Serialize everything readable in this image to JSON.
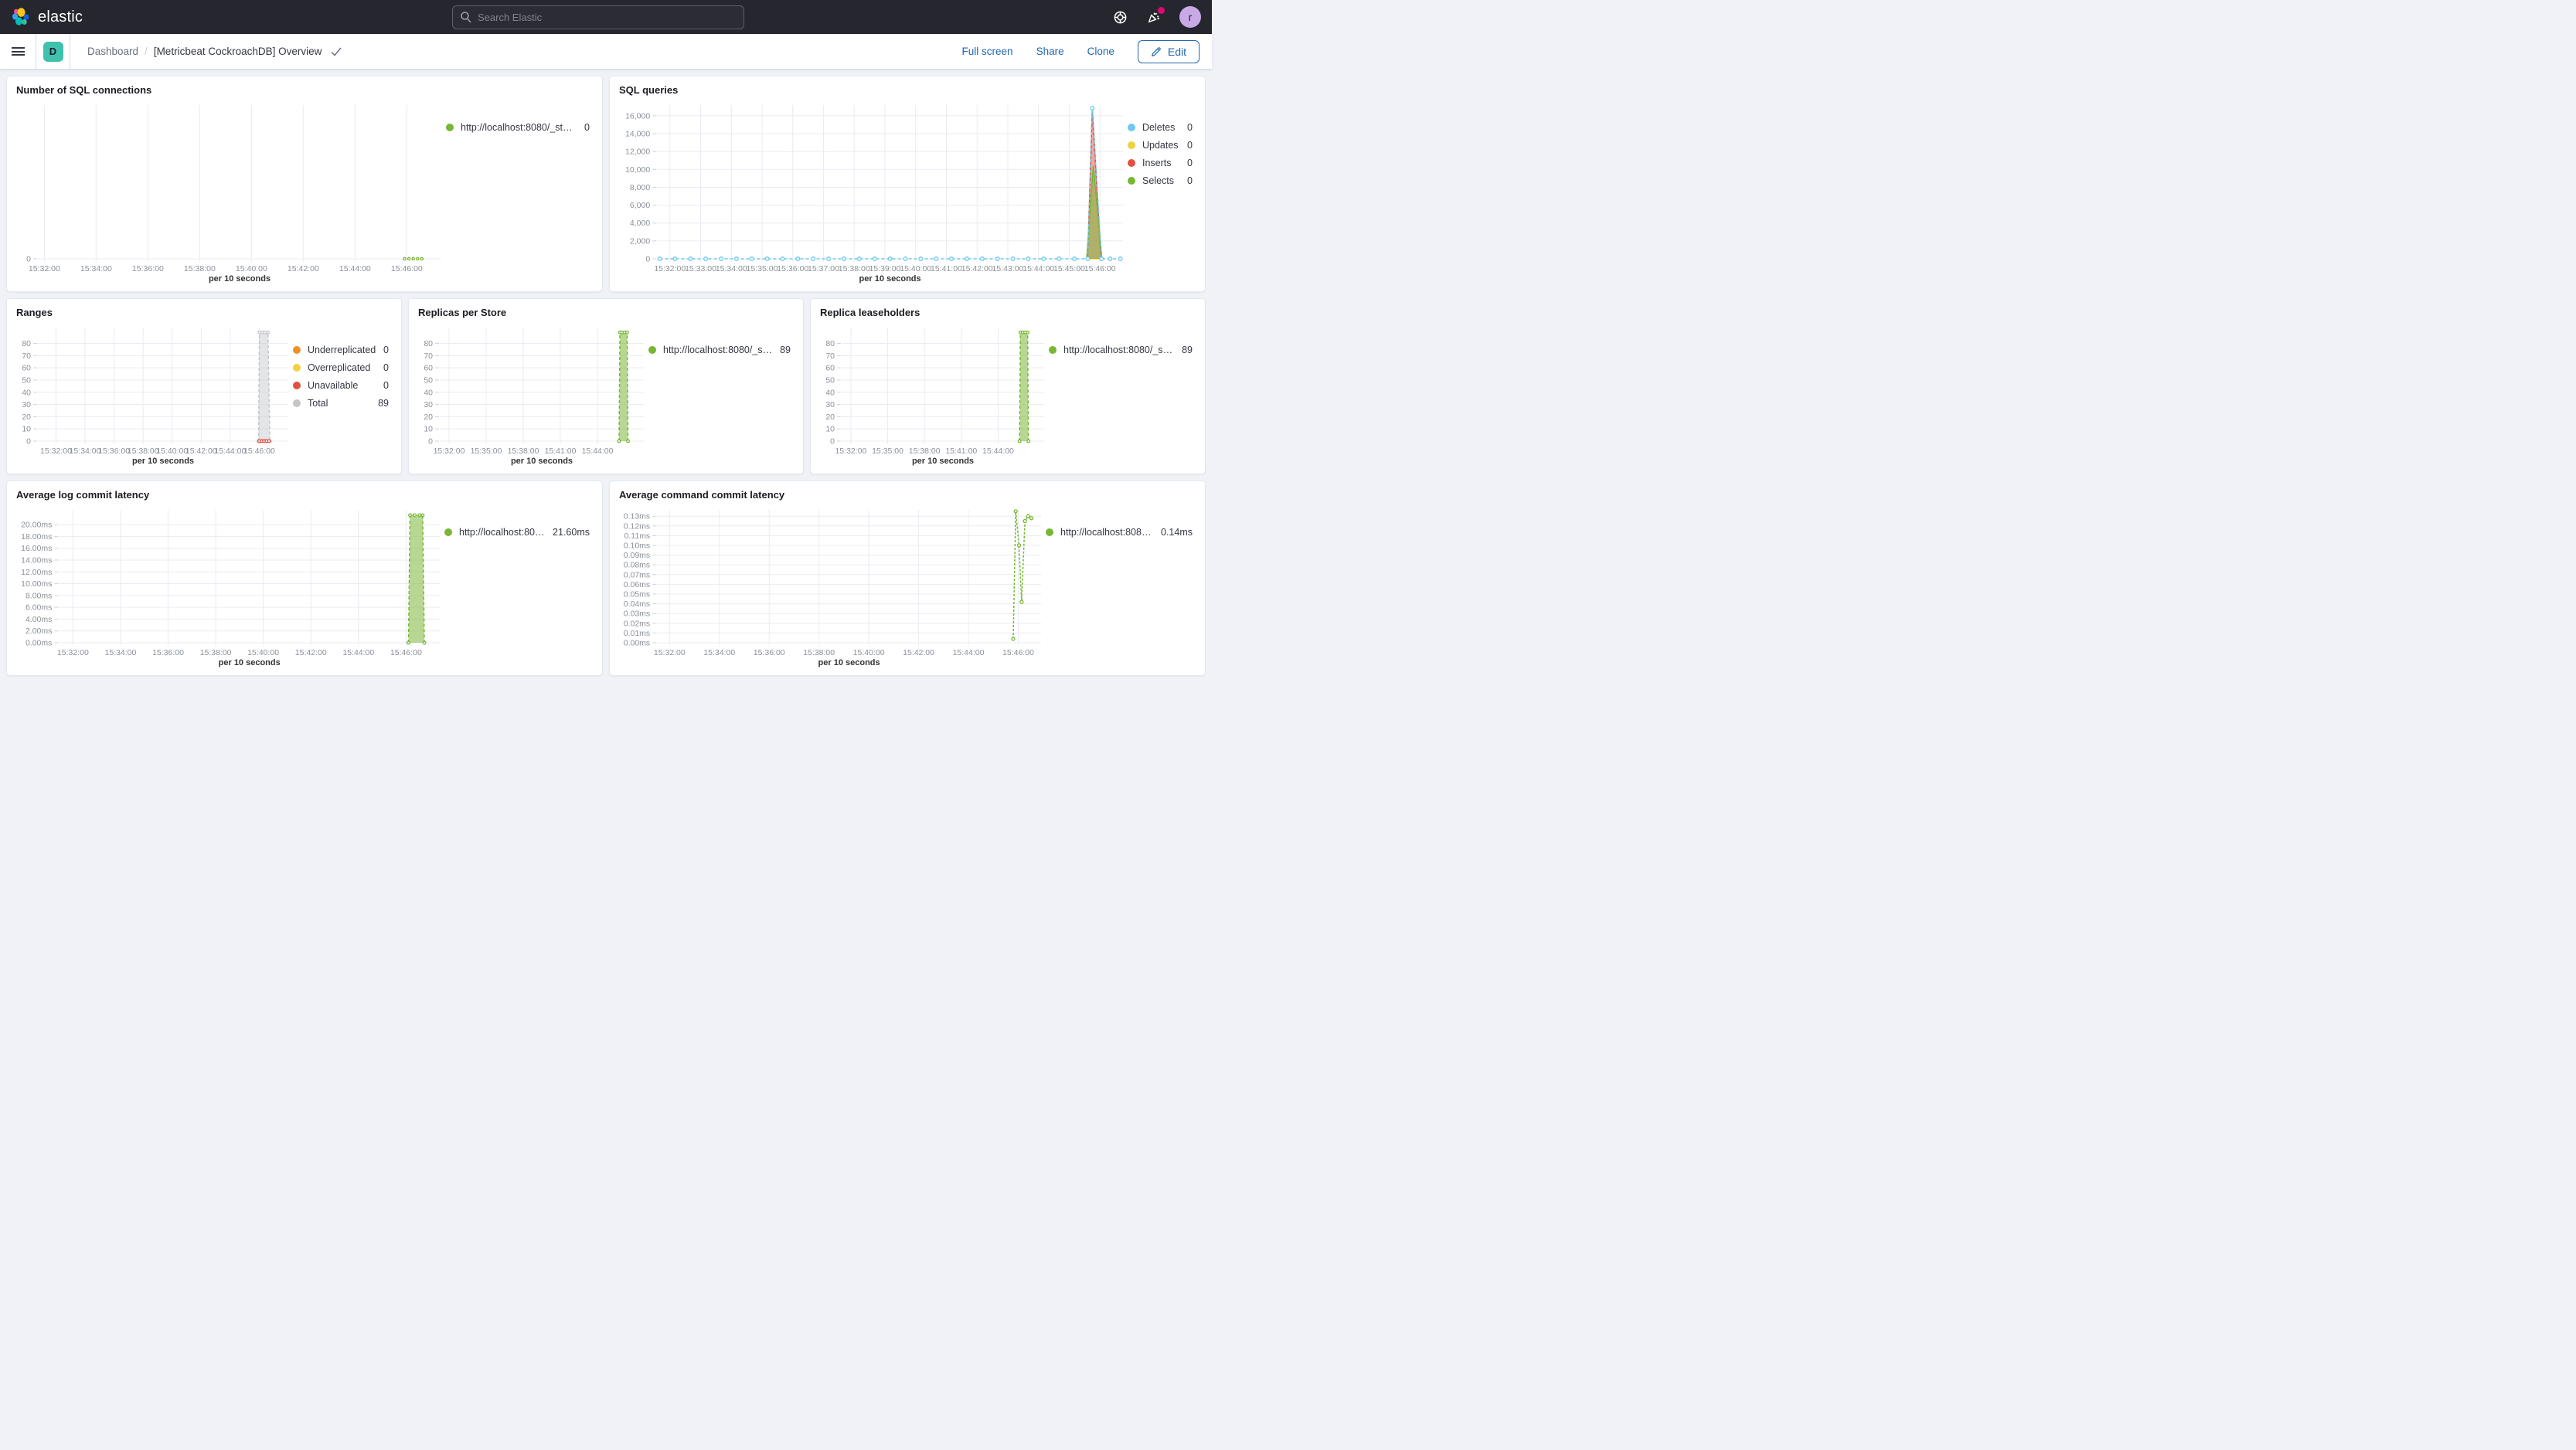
{
  "topbar": {
    "brand": "elastic",
    "search_placeholder": "Search Elastic",
    "avatar_initial": "r"
  },
  "navbar": {
    "space_badge": "D",
    "breadcrumb_root": "Dashboard",
    "breadcrumb_sep": "/",
    "title": "[Metricbeat CockroachDB] Overview",
    "actions": {
      "full_screen": "Full screen",
      "share": "Share",
      "clone": "Clone",
      "edit": "Edit"
    }
  },
  "colors": {
    "accent_blue": "#2268ad",
    "badge_teal": "#3fc1ad",
    "notification_pink": "#dd0a73",
    "avatar_purple": "#c9a9e6",
    "series_green": "#77b733",
    "series_blue": "#6ec8ef",
    "series_yellow": "#f0d13f",
    "series_red": "#e25140",
    "series_orange": "#ee9025",
    "series_gray": "#c4c5c9"
  },
  "chart_data": [
    {
      "id": "sql-connections",
      "type": "line",
      "title": "Number of SQL connections",
      "legend": [
        {
          "label": "http://localhost:8080/_stat...",
          "value": "0",
          "color": "#77b733"
        }
      ],
      "x_axis_label": "per 10 seconds",
      "x_domain": [
        "15:31:45",
        "15:47:20"
      ],
      "x_labels": [
        "15:32:00",
        "15:34:00",
        "15:36:00",
        "15:38:00",
        "15:40:00",
        "15:42:00",
        "15:44:00",
        "15:46:00"
      ],
      "y_ticks": [
        {
          "label": "0",
          "value": 0
        }
      ],
      "y_max": 1,
      "series": [
        {
          "name": "http://localhost:8080/_stat...",
          "color": "#77b733",
          "type": "line",
          "dash": "2,3",
          "markers": true,
          "marker_r": 1.6,
          "points": [
            [
              "15:45:55",
              0
            ],
            [
              "15:46:05",
              0
            ],
            [
              "15:46:15",
              0
            ],
            [
              "15:46:25",
              0
            ],
            [
              "15:46:35",
              0
            ]
          ]
        }
      ]
    },
    {
      "id": "sql-queries",
      "type": "area",
      "title": "SQL queries",
      "legend": [
        {
          "label": "Deletes",
          "value": "0",
          "color": "#6ec8ef"
        },
        {
          "label": "Updates",
          "value": "0",
          "color": "#f0d13f"
        },
        {
          "label": "Inserts",
          "value": "0",
          "color": "#e25140"
        },
        {
          "label": "Selects",
          "value": "0",
          "color": "#77b733"
        }
      ],
      "x_axis_label": "per 10 seconds",
      "x_domain": [
        "15:31:35",
        "15:46:45"
      ],
      "x_labels": [
        "15:32:00",
        "15:33:00",
        "15:34:00",
        "15:35:00",
        "15:36:00",
        "15:37:00",
        "15:38:00",
        "15:39:00",
        "15:40:00",
        "15:41:00",
        "15:42:00",
        "15:43:00",
        "15:44:00",
        "15:45:00",
        "15:46:00"
      ],
      "y_ticks": [
        {
          "label": "0",
          "value": 0
        },
        {
          "label": "2,000",
          "value": 2000
        },
        {
          "label": "4,000",
          "value": 4000
        },
        {
          "label": "6,000",
          "value": 6000
        },
        {
          "label": "8,000",
          "value": 8000
        },
        {
          "label": "10,000",
          "value": 10000
        },
        {
          "label": "12,000",
          "value": 12000
        },
        {
          "label": "14,000",
          "value": 14000
        },
        {
          "label": "16,000",
          "value": 16000
        }
      ],
      "y_max": 17200,
      "series": [
        {
          "name": "Updates",
          "color": "#f0d13f",
          "type": "line",
          "points": [
            [
              "15:45:36",
              0
            ],
            [
              "15:46:04",
              0
            ]
          ]
        },
        {
          "name": "Inserts",
          "color": "#e25140",
          "type": "area",
          "fill": "rgba(226,81,64,0.5)",
          "points": [
            [
              "15:45:36",
              0
            ],
            [
              "15:45:45",
              16800
            ],
            [
              "15:46:02",
              0
            ]
          ]
        },
        {
          "name": "Selects",
          "color": "#77b733",
          "type": "area",
          "fill": "rgba(125,183,59,0.55)",
          "points": [
            [
              "15:45:34",
              0
            ],
            [
              "15:45:47",
              10400
            ],
            [
              "15:46:04",
              0
            ]
          ]
        },
        {
          "name": "Deletes",
          "color": "#6ec8ef",
          "type": "line",
          "dash": "4,3",
          "markers": true,
          "marker_r": 2.3,
          "points": [
            [
              "15:31:40",
              0
            ],
            [
              "15:32:10",
              0
            ],
            [
              "15:32:40",
              0
            ],
            [
              "15:33:10",
              0
            ],
            [
              "15:33:40",
              0
            ],
            [
              "15:34:10",
              0
            ],
            [
              "15:34:40",
              0
            ],
            [
              "15:35:10",
              0
            ],
            [
              "15:35:40",
              0
            ],
            [
              "15:36:10",
              0
            ],
            [
              "15:36:40",
              0
            ],
            [
              "15:37:10",
              0
            ],
            [
              "15:37:40",
              0
            ],
            [
              "15:38:10",
              0
            ],
            [
              "15:38:40",
              0
            ],
            [
              "15:39:10",
              0
            ],
            [
              "15:39:40",
              0
            ],
            [
              "15:40:10",
              0
            ],
            [
              "15:40:40",
              0
            ],
            [
              "15:41:10",
              0
            ],
            [
              "15:41:40",
              0
            ],
            [
              "15:42:10",
              0
            ],
            [
              "15:42:40",
              0
            ],
            [
              "15:43:10",
              0
            ],
            [
              "15:43:40",
              0
            ],
            [
              "15:44:10",
              0
            ],
            [
              "15:44:40",
              0
            ],
            [
              "15:45:10",
              0
            ],
            [
              "15:45:36",
              0
            ],
            [
              "15:45:45",
              16850
            ],
            [
              "15:46:03",
              0
            ],
            [
              "15:46:20",
              0
            ],
            [
              "15:46:40",
              0
            ]
          ]
        }
      ]
    },
    {
      "id": "ranges",
      "type": "area",
      "title": "Ranges",
      "legend": [
        {
          "label": "Underreplicated",
          "value": "0",
          "color": "#ee9025"
        },
        {
          "label": "Overreplicated",
          "value": "0",
          "color": "#f0d13f"
        },
        {
          "label": "Unavailable",
          "value": "0",
          "color": "#e25140"
        },
        {
          "label": "Total",
          "value": "89",
          "color": "#c4c5c9"
        }
      ],
      "x_axis_label": "per 10 seconds",
      "x_domain": [
        "15:30:45",
        "15:48:00"
      ],
      "x_labels": [
        "15:32:00",
        "15:34:00",
        "15:36:00",
        "15:38:00",
        "15:40:00",
        "15:42:00",
        "15:44:00",
        "15:46:00"
      ],
      "y_ticks": [
        {
          "label": "0",
          "value": 0
        },
        {
          "label": "10",
          "value": 10
        },
        {
          "label": "20",
          "value": 20
        },
        {
          "label": "30",
          "value": 30
        },
        {
          "label": "40",
          "value": 40
        },
        {
          "label": "50",
          "value": 50
        },
        {
          "label": "60",
          "value": 60
        },
        {
          "label": "70",
          "value": 70
        },
        {
          "label": "80",
          "value": 80
        }
      ],
      "y_max": 93,
      "series": [
        {
          "name": "Total",
          "color": "#c4c5c9",
          "type": "area",
          "fill": "rgba(196,197,201,0.45)",
          "dash": "4,3",
          "markers": true,
          "marker_r": 1.8,
          "points": [
            [
              "15:45:57",
              0
            ],
            [
              "15:46:01",
              89
            ],
            [
              "15:46:12",
              89
            ],
            [
              "15:46:24",
              89
            ],
            [
              "15:46:36",
              89
            ],
            [
              "15:46:44",
              0
            ]
          ]
        },
        {
          "name": "Unavailable",
          "color": "#e25140",
          "type": "line",
          "dash": "2,2",
          "markers": true,
          "marker_r": 1.8,
          "points": [
            [
              "15:46:00",
              0
            ],
            [
              "15:46:10",
              0
            ],
            [
              "15:46:20",
              0
            ],
            [
              "15:46:30",
              0
            ],
            [
              "15:46:40",
              0
            ]
          ]
        }
      ]
    },
    {
      "id": "replicas-per-store",
      "type": "area",
      "title": "Replicas per Store",
      "legend": [
        {
          "label": "http://localhost:8080/_sta...",
          "value": "89",
          "color": "#77b733"
        }
      ],
      "x_axis_label": "per 10 seconds",
      "x_domain": [
        "15:31:15",
        "15:47:45"
      ],
      "x_labels": [
        "15:32:00",
        "15:35:00",
        "15:38:00",
        "15:41:00",
        "15:44:00"
      ],
      "y_ticks": [
        {
          "label": "0",
          "value": 0
        },
        {
          "label": "10",
          "value": 10
        },
        {
          "label": "20",
          "value": 20
        },
        {
          "label": "30",
          "value": 30
        },
        {
          "label": "40",
          "value": 40
        },
        {
          "label": "50",
          "value": 50
        },
        {
          "label": "60",
          "value": 60
        },
        {
          "label": "70",
          "value": 70
        },
        {
          "label": "80",
          "value": 80
        }
      ],
      "y_max": 93,
      "series": [
        {
          "name": "http://localhost:8080/_sta...",
          "color": "#77b733",
          "type": "area",
          "fill": "rgba(125,183,59,0.55)",
          "dash": "4,3",
          "markers": true,
          "marker_r": 1.8,
          "points": [
            [
              "15:45:45",
              0
            ],
            [
              "15:45:49",
              89
            ],
            [
              "15:46:00",
              89
            ],
            [
              "15:46:12",
              89
            ],
            [
              "15:46:24",
              89
            ],
            [
              "15:46:28",
              0
            ]
          ]
        }
      ]
    },
    {
      "id": "replica-leaseholders",
      "type": "area",
      "title": "Replica leaseholders",
      "legend": [
        {
          "label": "http://localhost:8080/_sta...",
          "value": "89",
          "color": "#77b733"
        }
      ],
      "x_axis_label": "per 10 seconds",
      "x_domain": [
        "15:31:15",
        "15:47:45"
      ],
      "x_labels": [
        "15:32:00",
        "15:35:00",
        "15:38:00",
        "15:41:00",
        "15:44:00"
      ],
      "y_ticks": [
        {
          "label": "0",
          "value": 0
        },
        {
          "label": "10",
          "value": 10
        },
        {
          "label": "20",
          "value": 20
        },
        {
          "label": "30",
          "value": 30
        },
        {
          "label": "40",
          "value": 40
        },
        {
          "label": "50",
          "value": 50
        },
        {
          "label": "60",
          "value": 60
        },
        {
          "label": "70",
          "value": 70
        },
        {
          "label": "80",
          "value": 80
        }
      ],
      "y_max": 93,
      "series": [
        {
          "name": "http://localhost:8080/_sta...",
          "color": "#77b733",
          "type": "area",
          "fill": "rgba(125,183,59,0.55)",
          "dash": "4,3",
          "markers": true,
          "marker_r": 1.8,
          "points": [
            [
              "15:45:45",
              0
            ],
            [
              "15:45:49",
              89
            ],
            [
              "15:46:00",
              89
            ],
            [
              "15:46:12",
              89
            ],
            [
              "15:46:24",
              89
            ],
            [
              "15:46:28",
              0
            ]
          ]
        }
      ]
    },
    {
      "id": "avg-log-commit-latency",
      "type": "area",
      "title": "Average log commit latency",
      "legend": [
        {
          "label": "http://localhost:808...",
          "value": "21.60ms",
          "color": "#77b733"
        }
      ],
      "x_axis_label": "per 10 seconds",
      "x_domain": [
        "15:31:25",
        "15:47:25"
      ],
      "x_labels": [
        "15:32:00",
        "15:34:00",
        "15:36:00",
        "15:38:00",
        "15:40:00",
        "15:42:00",
        "15:44:00",
        "15:46:00"
      ],
      "y_ticks": [
        {
          "label": "0.00ms",
          "value": 0
        },
        {
          "label": "2.00ms",
          "value": 2
        },
        {
          "label": "4.00ms",
          "value": 4
        },
        {
          "label": "6.00ms",
          "value": 6
        },
        {
          "label": "8.00ms",
          "value": 8
        },
        {
          "label": "10.00ms",
          "value": 10
        },
        {
          "label": "12.00ms",
          "value": 12
        },
        {
          "label": "14.00ms",
          "value": 14
        },
        {
          "label": "16.00ms",
          "value": 16
        },
        {
          "label": "18.00ms",
          "value": 18
        },
        {
          "label": "20.00ms",
          "value": 20
        }
      ],
      "y_max": 22.5,
      "series": [
        {
          "name": "http://localhost:808...",
          "color": "#77b733",
          "type": "area",
          "fill": "rgba(125,183,59,0.55)",
          "dash": "4,3",
          "markers": true,
          "marker_r": 1.8,
          "points": [
            [
              "15:46:06",
              0
            ],
            [
              "15:46:10",
              21.6
            ],
            [
              "15:46:22",
              21.6
            ],
            [
              "15:46:34",
              21.6
            ],
            [
              "15:46:42",
              21.6
            ],
            [
              "15:46:46",
              0
            ]
          ]
        }
      ]
    },
    {
      "id": "avg-command-commit-latency",
      "type": "line",
      "title": "Average command commit latency",
      "legend": [
        {
          "label": "http://localhost:8080...",
          "value": "0.14ms",
          "color": "#77b733"
        }
      ],
      "x_axis_label": "per 10 seconds",
      "x_domain": [
        "15:31:30",
        "15:46:55"
      ],
      "x_labels": [
        "15:32:00",
        "15:34:00",
        "15:36:00",
        "15:38:00",
        "15:40:00",
        "15:42:00",
        "15:44:00",
        "15:46:00"
      ],
      "y_ticks": [
        {
          "label": "0.00ms",
          "value": 0
        },
        {
          "label": "0.01ms",
          "value": 0.01
        },
        {
          "label": "0.02ms",
          "value": 0.02
        },
        {
          "label": "0.03ms",
          "value": 0.03
        },
        {
          "label": "0.04ms",
          "value": 0.04
        },
        {
          "label": "0.05ms",
          "value": 0.05
        },
        {
          "label": "0.06ms",
          "value": 0.06
        },
        {
          "label": "0.07ms",
          "value": 0.07
        },
        {
          "label": "0.08ms",
          "value": 0.08
        },
        {
          "label": "0.09ms",
          "value": 0.09
        },
        {
          "label": "0.10ms",
          "value": 0.1
        },
        {
          "label": "0.11ms",
          "value": 0.11
        },
        {
          "label": "0.12ms",
          "value": 0.12
        },
        {
          "label": "0.13ms",
          "value": 0.13
        }
      ],
      "y_max": 0.1365,
      "series": [
        {
          "name": "http://localhost:8080...",
          "color": "#77b733",
          "type": "line",
          "dash": "3,2",
          "markers": true,
          "marker_r": 2,
          "points": [
            [
              "15:45:48",
              0.004
            ],
            [
              "15:45:54",
              0.135
            ],
            [
              "15:46:02",
              0.1
            ],
            [
              "15:46:08",
              0.042
            ],
            [
              "15:46:16",
              0.125
            ],
            [
              "15:46:24",
              0.13
            ],
            [
              "15:46:32",
              0.128
            ]
          ]
        }
      ]
    }
  ]
}
